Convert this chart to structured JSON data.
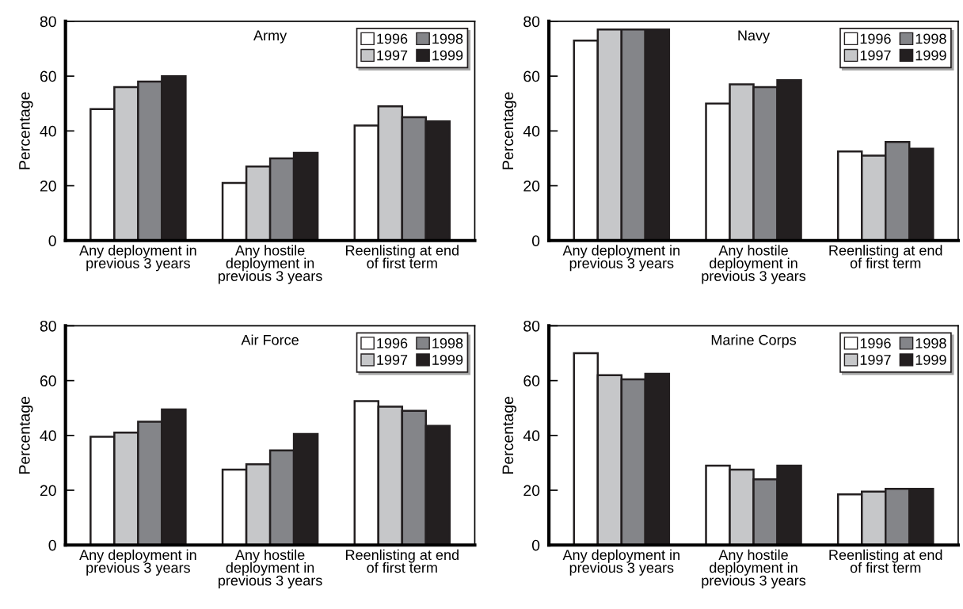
{
  "chart_data": [
    {
      "type": "bar",
      "title": "Army",
      "ylabel": "Percentage",
      "categories": [
        "Any deployment in\nprevious 3 years",
        "Any hostile\ndeployment in\nprevious 3 years",
        "Reenlisting at end\nof first term"
      ],
      "ylim": [
        0,
        80
      ],
      "yticks": [
        0,
        20,
        40,
        60,
        80
      ],
      "grid": false,
      "legend": "top right",
      "series": [
        {
          "name": "1996",
          "color": "#ffffff",
          "values": [
            48,
            21,
            42
          ]
        },
        {
          "name": "1997",
          "color": "#c6c7c9",
          "values": [
            56,
            27,
            49
          ]
        },
        {
          "name": "1998",
          "color": "#848589",
          "values": [
            58,
            30,
            45
          ]
        },
        {
          "name": "1999",
          "color": "#231f20",
          "values": [
            60,
            32,
            43.5
          ]
        }
      ]
    },
    {
      "type": "bar",
      "title": "Navy",
      "ylabel": "Percentage",
      "categories": [
        "Any deployment in\nprevious 3 years",
        "Any hostile\ndeployment in\nprevious 3 years",
        "Reenlisting at end\nof first term"
      ],
      "ylim": [
        0,
        80
      ],
      "yticks": [
        0,
        20,
        40,
        60,
        80
      ],
      "grid": false,
      "legend": "top right",
      "series": [
        {
          "name": "1996",
          "color": "#ffffff",
          "values": [
            73,
            50,
            32.5
          ]
        },
        {
          "name": "1997",
          "color": "#c6c7c9",
          "values": [
            77,
            57,
            31
          ]
        },
        {
          "name": "1998",
          "color": "#848589",
          "values": [
            77,
            56,
            36
          ]
        },
        {
          "name": "1999",
          "color": "#231f20",
          "values": [
            77,
            58.5,
            33.5
          ]
        }
      ]
    },
    {
      "type": "bar",
      "title": "Air Force",
      "ylabel": "Percentage",
      "categories": [
        "Any deployment in\nprevious 3 years",
        "Any hostile\ndeployment in\nprevious 3 years",
        "Reenlisting at end\nof first term"
      ],
      "ylim": [
        0,
        80
      ],
      "yticks": [
        0,
        20,
        40,
        60,
        80
      ],
      "grid": false,
      "legend": "top right",
      "series": [
        {
          "name": "1996",
          "color": "#ffffff",
          "values": [
            39.5,
            27.5,
            52.5
          ]
        },
        {
          "name": "1997",
          "color": "#c6c7c9",
          "values": [
            41,
            29.5,
            50.5
          ]
        },
        {
          "name": "1998",
          "color": "#848589",
          "values": [
            45,
            34.5,
            49
          ]
        },
        {
          "name": "1999",
          "color": "#231f20",
          "values": [
            49.5,
            40.5,
            43.5
          ]
        }
      ]
    },
    {
      "type": "bar",
      "title": "Marine Corps",
      "ylabel": "Percentage",
      "categories": [
        "Any deployment in\nprevious 3 years",
        "Any hostile\ndeployment in\nprevious 3 years",
        "Reenlisting at end\nof first term"
      ],
      "ylim": [
        0,
        80
      ],
      "yticks": [
        0,
        20,
        40,
        60,
        80
      ],
      "grid": false,
      "legend": "top right",
      "series": [
        {
          "name": "1996",
          "color": "#ffffff",
          "values": [
            70,
            29,
            18.5
          ]
        },
        {
          "name": "1997",
          "color": "#c6c7c9",
          "values": [
            62,
            27.5,
            19.5
          ]
        },
        {
          "name": "1998",
          "color": "#848589",
          "values": [
            60.5,
            24,
            20.5
          ]
        },
        {
          "name": "1999",
          "color": "#231f20",
          "values": [
            62.5,
            29,
            20.5
          ]
        }
      ]
    }
  ]
}
